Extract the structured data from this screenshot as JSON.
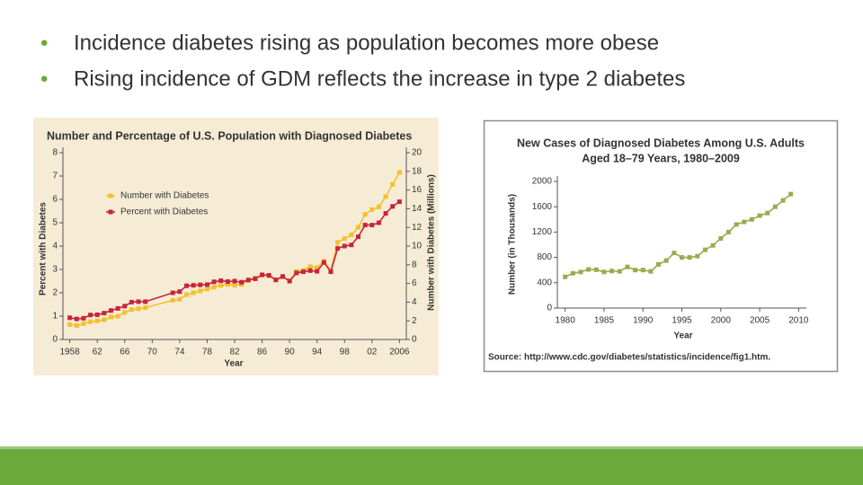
{
  "bullets": [
    "Incidence diabetes rising as population becomes more obese",
    "Rising incidence of GDM reflects the increase in type 2 diabetes"
  ],
  "chart_data": [
    {
      "type": "line",
      "title": "Number and Percentage of U.S. Population with Diagnosed Diabetes",
      "x_label": "Year",
      "y_label": "Percent with Diabetes",
      "y2_label": "Number with Diabetes (Millions)",
      "legend": "upper left",
      "x": [
        1958,
        1959,
        1960,
        1961,
        1962,
        1963,
        1964,
        1965,
        1966,
        1967,
        1968,
        1969,
        1973,
        1974,
        1975,
        1976,
        1977,
        1978,
        1979,
        1980,
        1981,
        1982,
        1983,
        1984,
        1985,
        1986,
        1987,
        1988,
        1989,
        1990,
        1991,
        1992,
        1993,
        1994,
        1995,
        1996,
        1997,
        1998,
        1999,
        2000,
        2001,
        2002,
        2003,
        2004,
        2005,
        2006
      ],
      "series": [
        {
          "name": "Number with Diabetes",
          "color": "#f2c12e",
          "axis": "y2",
          "values": [
            1.6,
            1.5,
            1.7,
            1.9,
            2.0,
            2.1,
            2.4,
            2.5,
            2.9,
            3.2,
            3.3,
            3.4,
            4.2,
            4.3,
            4.8,
            5.0,
            5.2,
            5.4,
            5.6,
            5.8,
            5.9,
            5.8,
            5.9,
            6.3,
            6.6,
            6.9,
            6.8,
            6.4,
            6.7,
            6.3,
            7.3,
            7.4,
            7.8,
            7.7,
            8.4,
            7.4,
            10.4,
            10.8,
            11.2,
            12.0,
            13.4,
            13.9,
            14.2,
            15.3,
            16.6,
            17.9
          ]
        },
        {
          "name": "Percent with Diabetes",
          "color": "#c8243a",
          "values": [
            0.93,
            0.88,
            0.91,
            1.05,
            1.06,
            1.13,
            1.24,
            1.33,
            1.43,
            1.6,
            1.62,
            1.62,
            2.0,
            2.05,
            2.3,
            2.32,
            2.34,
            2.35,
            2.47,
            2.52,
            2.48,
            2.5,
            2.45,
            2.55,
            2.6,
            2.77,
            2.75,
            2.55,
            2.7,
            2.5,
            2.85,
            2.9,
            2.95,
            2.92,
            3.3,
            2.9,
            3.9,
            4.0,
            4.05,
            4.4,
            4.9,
            4.9,
            5.0,
            5.4,
            5.7,
            5.9
          ]
        }
      ],
      "xlim": [
        1957,
        2007
      ],
      "xticks": [
        1958,
        {
          "value": 1962,
          "label": "62"
        },
        {
          "value": 1966,
          "label": "66"
        },
        {
          "value": 1970,
          "label": "70"
        },
        {
          "value": 1974,
          "label": "74"
        },
        {
          "value": 1978,
          "label": "78"
        },
        {
          "value": 1982,
          "label": "82"
        },
        {
          "value": 1986,
          "label": "86"
        },
        {
          "value": 1990,
          "label": "90"
        },
        {
          "value": 1994,
          "label": "94"
        },
        {
          "value": 1998,
          "label": "98"
        },
        {
          "value": 2002,
          "label": "02"
        },
        2006
      ],
      "ylim": [
        0,
        8
      ],
      "yticks": [
        0,
        1,
        2,
        3,
        4,
        5,
        6,
        7,
        8
      ],
      "y2lim": [
        0,
        20
      ],
      "y2ticks": [
        0,
        2,
        4,
        6,
        8,
        10,
        12,
        14,
        16,
        18,
        20
      ],
      "grid": false
    },
    {
      "type": "line",
      "title": "New Cases of Diagnosed Diabetes Among U.S. Adults",
      "subtitle": "Aged 18–79 Years, 1980–2009",
      "x_label": "Year",
      "y_label": "Number (in Thousands)",
      "source": "Source: http://www.cdc.gov/diabetes/statistics/incidence/fig1.htm.",
      "x": [
        1980,
        1981,
        1982,
        1983,
        1984,
        1985,
        1986,
        1987,
        1988,
        1989,
        1990,
        1991,
        1992,
        1993,
        1994,
        1995,
        1996,
        1997,
        1998,
        1999,
        2000,
        2001,
        2002,
        2003,
        2004,
        2005,
        2006,
        2007,
        2008,
        2009
      ],
      "series": [
        {
          "name": "New Cases",
          "color": "#9aab4d",
          "values": [
            493,
            550,
            570,
            610,
            605,
            570,
            585,
            580,
            650,
            600,
            600,
            580,
            690,
            750,
            870,
            800,
            800,
            820,
            920,
            990,
            1100,
            1200,
            1320,
            1360,
            1400,
            1460,
            1500,
            1600,
            1700,
            1800
          ]
        }
      ],
      "xlim": [
        1979,
        2011
      ],
      "xticks": [
        1980,
        1985,
        1990,
        1995,
        2000,
        2005,
        2010
      ],
      "ylim": [
        0,
        2000
      ],
      "yticks": [
        0,
        400,
        800,
        1200,
        1600,
        2000
      ],
      "grid": false
    }
  ]
}
